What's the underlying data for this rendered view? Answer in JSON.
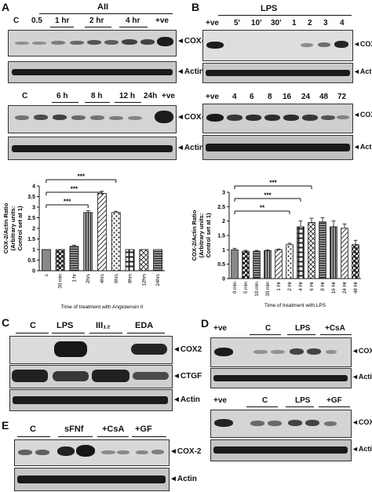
{
  "panels": {
    "A": {
      "letter": "A",
      "treatment": "AII",
      "top_lanes": [
        "C",
        "0.5",
        "1 hr",
        "2 hr",
        "4 hr",
        "+ve"
      ],
      "bottom_lanes": [
        "C",
        "6 h",
        "8 h",
        "12 h",
        "24h",
        "+ve"
      ],
      "cox2": "COX-2",
      "actin": "Actin"
    },
    "B": {
      "letter": "B",
      "treatment": "LPS",
      "top_lanes": [
        "+ve",
        "5'",
        "10'",
        "30'",
        "1",
        "2",
        "3",
        "4"
      ],
      "bottom_lanes": [
        "+ve",
        "4",
        "6",
        "8",
        "16",
        "24",
        "48",
        "72"
      ],
      "cox2": "COX-2",
      "actin": "Actin"
    },
    "C": {
      "letter": "C",
      "lanes": [
        "C",
        "LPS",
        "III₁₂",
        "EDA"
      ],
      "rows": [
        "COX2",
        "CTGF",
        "Actin"
      ]
    },
    "D": {
      "letter": "D",
      "top_lanes": [
        "+ve",
        "C",
        "LPS",
        "+CsA"
      ],
      "bottom_lanes": [
        "+ve",
        "C",
        "LPS",
        "+GF"
      ],
      "cox2": "COX-2",
      "actin": "Actin"
    },
    "E": {
      "letter": "E",
      "lanes": [
        "C",
        "sFNf",
        "+CsA",
        "+GF"
      ],
      "cox2": "COX-2",
      "actin": "Actin"
    }
  },
  "chart_data": [
    {
      "type": "bar",
      "panel": "A",
      "ylabel": "COX-2/Actin Ratio (Arbitrary units: Control set at 1)",
      "xlabel": "Time of treatment with Angiotensin II",
      "categories": [
        "c",
        "30 min",
        "1 hr",
        "2hrs",
        "4hrs",
        "6hrs",
        "8hrs",
        "12hrs",
        "24hrs"
      ],
      "values": [
        1.0,
        1.0,
        1.15,
        2.75,
        3.65,
        2.75,
        1.0,
        1.0,
        1.0
      ],
      "errors": [
        0.0,
        0.0,
        0.05,
        0.08,
        0.1,
        0.06,
        0.0,
        0.0,
        0.0
      ],
      "yticks": [
        0,
        0.5,
        1,
        1.5,
        2,
        2.5,
        3,
        3.5,
        4
      ],
      "ylim": [
        0,
        4
      ],
      "significance": [
        "***",
        "***",
        "***"
      ]
    },
    {
      "type": "bar",
      "panel": "B",
      "ylabel": "COX-2/Actin Ratio (Arbitrary units: Control set at 1)",
      "xlabel": "Time of treatment with LPS",
      "categories": [
        "0 min",
        "5 min",
        "10 min",
        "30 min",
        "1 Hr",
        "2 Hr",
        "4 Hr",
        "6 Hr",
        "8 Hr",
        "16 Hr",
        "24 Hr",
        "48 Hr"
      ],
      "values": [
        1.0,
        0.95,
        0.95,
        0.97,
        1.0,
        1.18,
        1.8,
        1.95,
        1.97,
        1.8,
        1.75,
        1.18
      ],
      "errors": [
        0.05,
        0.03,
        0.03,
        0.03,
        0.03,
        0.05,
        0.2,
        0.15,
        0.15,
        0.2,
        0.15,
        0.15
      ],
      "yticks": [
        0,
        0.5,
        1,
        1.5,
        2,
        2.5,
        3
      ],
      "ylim": [
        0,
        3
      ],
      "significance": [
        "***",
        "***",
        "**"
      ]
    }
  ]
}
